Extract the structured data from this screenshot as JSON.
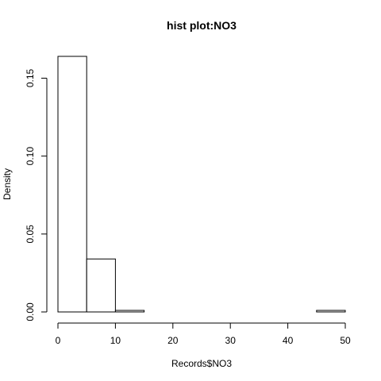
{
  "chart_data": {
    "type": "bar",
    "title": "hist plot:NO3",
    "xlabel": "Records$NO3",
    "ylabel": "Density",
    "bins": [
      {
        "x0": 0,
        "x1": 5,
        "density": 0.164
      },
      {
        "x0": 5,
        "x1": 10,
        "density": 0.034
      },
      {
        "x0": 10,
        "x1": 15,
        "density": 0.001
      },
      {
        "x0": 15,
        "x1": 20,
        "density": 0.0
      },
      {
        "x0": 20,
        "x1": 25,
        "density": 0.0
      },
      {
        "x0": 25,
        "x1": 30,
        "density": 0.0
      },
      {
        "x0": 30,
        "x1": 35,
        "density": 0.0
      },
      {
        "x0": 35,
        "x1": 40,
        "density": 0.0
      },
      {
        "x0": 40,
        "x1": 45,
        "density": 0.0
      },
      {
        "x0": 45,
        "x1": 50,
        "density": 0.001
      }
    ],
    "xlim": [
      0,
      50
    ],
    "ylim": [
      0,
      0.164
    ],
    "xticks": [
      {
        "value": 0,
        "label": "0"
      },
      {
        "value": 10,
        "label": "10"
      },
      {
        "value": 20,
        "label": "20"
      },
      {
        "value": 30,
        "label": "30"
      },
      {
        "value": 40,
        "label": "40"
      },
      {
        "value": 50,
        "label": "50"
      }
    ],
    "yticks": [
      {
        "value": 0.0,
        "label": "0.00"
      },
      {
        "value": 0.05,
        "label": "0.05"
      },
      {
        "value": 0.1,
        "label": "0.10"
      },
      {
        "value": 0.15,
        "label": "0.15"
      }
    ],
    "grid": false,
    "bar_fill": "#ffffff",
    "bar_stroke": "#000000"
  }
}
